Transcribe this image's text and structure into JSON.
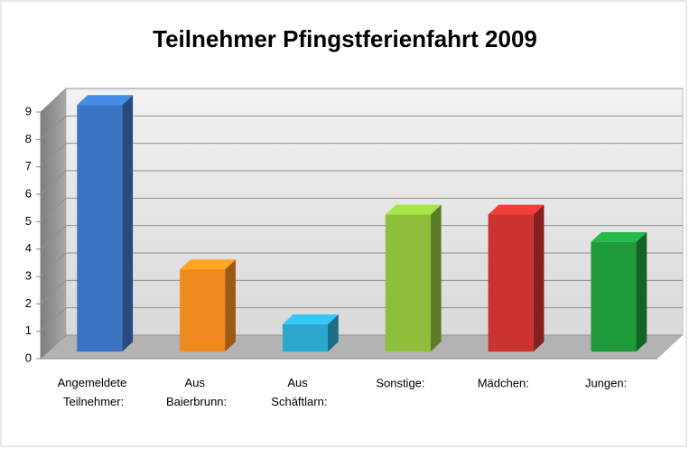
{
  "chart_data": {
    "type": "bar3d",
    "title": "Teilnehmer Pfingstferienfahrt 2009",
    "categories": [
      "Angemeldete Teilnehmer:",
      "Aus Baierbrunn:",
      "Aus Schäftlarn:",
      "Sonstige:",
      "Mädchen:",
      "Jungen:"
    ],
    "values": [
      9,
      3,
      1,
      5,
      5,
      4
    ],
    "colors": [
      "#3b74c2",
      "#f08a1e",
      "#2ba7d0",
      "#8dbf3b",
      "#cb3230",
      "#1f9a3b"
    ],
    "ylim": [
      0,
      9
    ],
    "yticks": [
      0,
      1,
      2,
      3,
      4,
      5,
      6,
      7,
      8,
      9
    ],
    "grid": true
  }
}
